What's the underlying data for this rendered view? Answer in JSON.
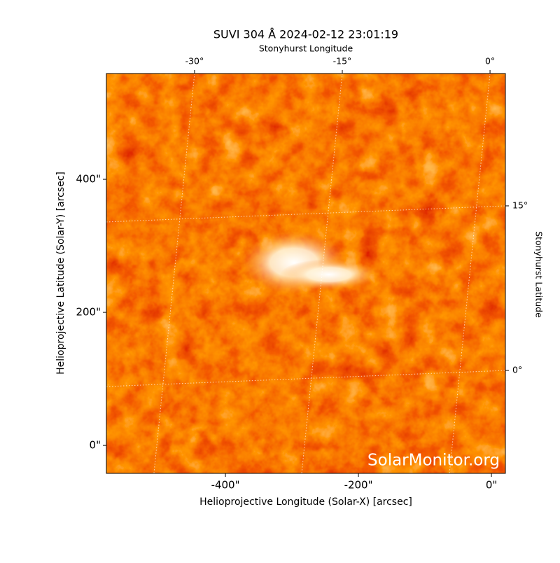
{
  "chart_data": {
    "type": "image",
    "title": "SUVI 304 Å 2024-02-12 23:01:19",
    "xlabel": "Helioprojective Longitude (Solar-X) [arcsec]",
    "ylabel": "Helioprojective Latitude (Solar-Y) [arcsec]",
    "x2label": "Stonyhurst Longitude",
    "y2label": "Stonyhurst Latitude",
    "xlim": [
      -579,
      21
    ],
    "ylim": [
      -42,
      559
    ],
    "xticks": [
      {
        "value": -400,
        "label": "-400\""
      },
      {
        "value": -200,
        "label": "-200\""
      },
      {
        "value": 0,
        "label": "0\""
      }
    ],
    "yticks": [
      {
        "value": 0,
        "label": "0\""
      },
      {
        "value": 200,
        "label": "200\""
      },
      {
        "value": 400,
        "label": "400\""
      }
    ],
    "x2lim": [
      -38.95,
      1.56
    ],
    "x2ticks": [
      {
        "value": -30,
        "label": "-30°"
      },
      {
        "value": -15,
        "label": "-15°"
      },
      {
        "value": 0,
        "label": "0°"
      }
    ],
    "y2lim": [
      -9.38,
      27.06
    ],
    "y2ticks": [
      {
        "value": 0,
        "label": "0°"
      },
      {
        "value": 15,
        "label": "15°"
      }
    ],
    "grid": true,
    "watermark": "SolarMonitor.org"
  }
}
